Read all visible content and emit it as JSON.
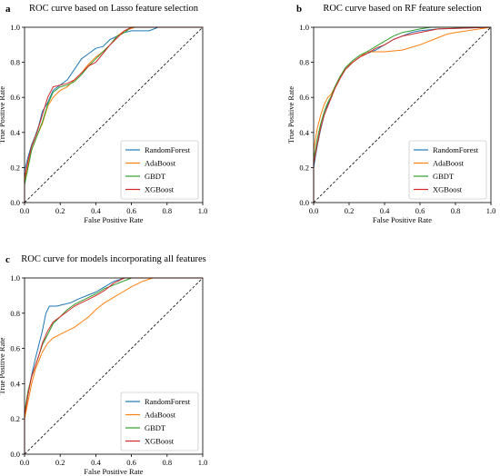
{
  "chart_data": [
    {
      "panel_label": "a",
      "type": "line",
      "title": "ROC curve based on Lasso feature selection",
      "xlabel": "False Positive Rate",
      "ylabel": "True Positive Rate",
      "xlim": [
        0.0,
        1.0
      ],
      "ylim": [
        0.0,
        1.0
      ],
      "xticks": [
        "0.0",
        "0.2",
        "0.4",
        "0.6",
        "0.8",
        "1.0"
      ],
      "yticks": [
        "0.0",
        "0.2",
        "0.4",
        "0.6",
        "0.8",
        "1.0"
      ],
      "grid": false,
      "legend_position": "lower-right",
      "series": [
        {
          "name": "RandomForest",
          "color": "#1f77b4",
          "x": [
            0,
            0,
            0.02,
            0.04,
            0.06,
            0.08,
            0.1,
            0.13,
            0.16,
            0.2,
            0.24,
            0.28,
            0.32,
            0.36,
            0.4,
            0.44,
            0.48,
            0.52,
            0.56,
            0.6,
            0.7,
            0.75,
            1.0
          ],
          "y": [
            0,
            0.18,
            0.26,
            0.33,
            0.38,
            0.44,
            0.52,
            0.57,
            0.64,
            0.67,
            0.7,
            0.76,
            0.82,
            0.85,
            0.88,
            0.89,
            0.93,
            0.95,
            0.97,
            0.98,
            0.98,
            1.0,
            1.0
          ]
        },
        {
          "name": "AdaBoost",
          "color": "#ff7f0e",
          "x": [
            0,
            0,
            0.02,
            0.04,
            0.07,
            0.1,
            0.13,
            0.16,
            0.2,
            0.24,
            0.28,
            0.32,
            0.36,
            0.4,
            0.44,
            0.48,
            0.52,
            0.56,
            0.62,
            1.0
          ],
          "y": [
            0,
            0.12,
            0.22,
            0.3,
            0.38,
            0.45,
            0.55,
            0.6,
            0.64,
            0.66,
            0.7,
            0.74,
            0.79,
            0.83,
            0.86,
            0.9,
            0.95,
            0.98,
            1.0,
            1.0
          ]
        },
        {
          "name": "GBDT",
          "color": "#2ca02c",
          "x": [
            0,
            0,
            0.02,
            0.04,
            0.07,
            0.1,
            0.13,
            0.16,
            0.2,
            0.24,
            0.28,
            0.32,
            0.36,
            0.4,
            0.44,
            0.48,
            0.52,
            0.56,
            0.6,
            1.0
          ],
          "y": [
            0,
            0.1,
            0.2,
            0.3,
            0.38,
            0.46,
            0.56,
            0.63,
            0.66,
            0.67,
            0.69,
            0.73,
            0.78,
            0.82,
            0.86,
            0.9,
            0.95,
            0.97,
            1.0,
            1.0
          ]
        },
        {
          "name": "XGBoost",
          "color": "#d62728",
          "x": [
            0,
            0,
            0.02,
            0.04,
            0.07,
            0.1,
            0.13,
            0.16,
            0.2,
            0.24,
            0.28,
            0.32,
            0.36,
            0.4,
            0.44,
            0.48,
            0.52,
            0.56,
            0.6,
            1.0
          ],
          "y": [
            0,
            0.14,
            0.24,
            0.32,
            0.4,
            0.5,
            0.6,
            0.66,
            0.67,
            0.68,
            0.7,
            0.74,
            0.78,
            0.8,
            0.85,
            0.9,
            0.94,
            0.98,
            1.0,
            1.0
          ]
        }
      ]
    },
    {
      "panel_label": "b",
      "type": "line",
      "title": "ROC curve based on RF feature selection",
      "xlabel": "False Positive Rate",
      "ylabel": "True Positive Rate",
      "xlim": [
        0.0,
        1.0
      ],
      "ylim": [
        0.0,
        1.0
      ],
      "xticks": [
        "0.0",
        "0.2",
        "0.4",
        "0.6",
        "0.8",
        "1.0"
      ],
      "yticks": [
        "0.0",
        "0.2",
        "0.4",
        "0.6",
        "0.8",
        "1.0"
      ],
      "grid": false,
      "legend_position": "lower-right",
      "series": [
        {
          "name": "RandomForest",
          "color": "#1f77b4",
          "x": [
            0,
            0,
            0.02,
            0.04,
            0.06,
            0.08,
            0.1,
            0.12,
            0.15,
            0.18,
            0.22,
            0.26,
            0.3,
            0.35,
            0.4,
            0.45,
            0.5,
            0.55,
            0.6,
            0.7,
            1.0
          ],
          "y": [
            0,
            0.2,
            0.32,
            0.42,
            0.5,
            0.56,
            0.6,
            0.66,
            0.72,
            0.76,
            0.8,
            0.83,
            0.85,
            0.87,
            0.9,
            0.93,
            0.95,
            0.97,
            0.98,
            0.99,
            1.0
          ]
        },
        {
          "name": "AdaBoost",
          "color": "#ff7f0e",
          "x": [
            0,
            0,
            0.02,
            0.04,
            0.06,
            0.08,
            0.1,
            0.12,
            0.15,
            0.18,
            0.22,
            0.26,
            0.3,
            0.35,
            0.4,
            0.5,
            0.6,
            0.7,
            0.75,
            0.8,
            1.0
          ],
          "y": [
            0,
            0.3,
            0.42,
            0.5,
            0.56,
            0.6,
            0.62,
            0.66,
            0.72,
            0.77,
            0.8,
            0.83,
            0.86,
            0.86,
            0.86,
            0.87,
            0.9,
            0.94,
            0.96,
            0.97,
            1.0
          ]
        },
        {
          "name": "GBDT",
          "color": "#2ca02c",
          "x": [
            0,
            0,
            0.02,
            0.04,
            0.06,
            0.08,
            0.1,
            0.12,
            0.15,
            0.18,
            0.22,
            0.26,
            0.3,
            0.35,
            0.4,
            0.45,
            0.5,
            0.55,
            0.6,
            0.66,
            1.0
          ],
          "y": [
            0,
            0.25,
            0.36,
            0.45,
            0.52,
            0.57,
            0.61,
            0.66,
            0.72,
            0.77,
            0.81,
            0.84,
            0.86,
            0.89,
            0.92,
            0.95,
            0.97,
            0.98,
            0.99,
            1.0,
            1.0
          ]
        },
        {
          "name": "XGBoost",
          "color": "#d62728",
          "x": [
            0,
            0,
            0.02,
            0.04,
            0.06,
            0.08,
            0.1,
            0.12,
            0.15,
            0.18,
            0.22,
            0.26,
            0.3,
            0.35,
            0.4,
            0.45,
            0.5,
            0.55,
            0.6,
            0.7,
            1.0
          ],
          "y": [
            0,
            0.22,
            0.33,
            0.43,
            0.5,
            0.55,
            0.6,
            0.65,
            0.71,
            0.76,
            0.8,
            0.83,
            0.85,
            0.88,
            0.9,
            0.93,
            0.95,
            0.96,
            0.97,
            0.99,
            1.0
          ]
        }
      ]
    },
    {
      "panel_label": "c",
      "type": "line",
      "title": "ROC curve for models incorporating all features",
      "xlabel": "False Positive Rate",
      "ylabel": "True Positive Rate",
      "xlim": [
        0.0,
        1.0
      ],
      "ylim": [
        0.0,
        1.0
      ],
      "xticks": [
        "0.0",
        "0.2",
        "0.4",
        "0.6",
        "0.8",
        "1.0"
      ],
      "yticks": [
        "0.0",
        "0.2",
        "0.4",
        "0.6",
        "0.8",
        "1.0"
      ],
      "grid": false,
      "legend_position": "lower-right",
      "series": [
        {
          "name": "RandomForest",
          "color": "#1f77b4",
          "x": [
            0,
            0,
            0.02,
            0.04,
            0.06,
            0.08,
            0.1,
            0.12,
            0.14,
            0.18,
            0.22,
            0.26,
            0.3,
            0.35,
            0.4,
            0.45,
            0.5,
            0.56,
            1.0
          ],
          "y": [
            0,
            0.22,
            0.34,
            0.45,
            0.54,
            0.62,
            0.7,
            0.8,
            0.84,
            0.84,
            0.85,
            0.86,
            0.88,
            0.9,
            0.92,
            0.95,
            0.98,
            1.0,
            1.0
          ]
        },
        {
          "name": "AdaBoost",
          "color": "#ff7f0e",
          "x": [
            0,
            0,
            0.02,
            0.04,
            0.06,
            0.08,
            0.1,
            0.13,
            0.16,
            0.2,
            0.24,
            0.28,
            0.32,
            0.36,
            0.4,
            0.45,
            0.5,
            0.55,
            0.6,
            0.66,
            0.72,
            1.0
          ],
          "y": [
            0,
            0.2,
            0.3,
            0.4,
            0.48,
            0.53,
            0.58,
            0.63,
            0.66,
            0.68,
            0.7,
            0.72,
            0.75,
            0.78,
            0.82,
            0.86,
            0.89,
            0.92,
            0.95,
            0.98,
            1.0,
            1.0
          ]
        },
        {
          "name": "GBDT",
          "color": "#2ca02c",
          "x": [
            0,
            0,
            0.02,
            0.04,
            0.06,
            0.08,
            0.1,
            0.13,
            0.16,
            0.2,
            0.24,
            0.28,
            0.32,
            0.36,
            0.4,
            0.45,
            0.5,
            0.55,
            0.6,
            1.0
          ],
          "y": [
            0,
            0.24,
            0.36,
            0.44,
            0.5,
            0.56,
            0.62,
            0.68,
            0.74,
            0.78,
            0.82,
            0.85,
            0.87,
            0.89,
            0.91,
            0.94,
            0.96,
            0.98,
            1.0,
            1.0
          ]
        },
        {
          "name": "XGBoost",
          "color": "#d62728",
          "x": [
            0,
            0,
            0.02,
            0.04,
            0.06,
            0.08,
            0.1,
            0.13,
            0.16,
            0.2,
            0.24,
            0.28,
            0.32,
            0.36,
            0.4,
            0.45,
            0.5,
            0.56,
            1.0
          ],
          "y": [
            0,
            0.22,
            0.34,
            0.44,
            0.5,
            0.56,
            0.63,
            0.7,
            0.75,
            0.78,
            0.81,
            0.84,
            0.86,
            0.88,
            0.9,
            0.93,
            0.97,
            1.0,
            1.0
          ]
        }
      ]
    }
  ]
}
